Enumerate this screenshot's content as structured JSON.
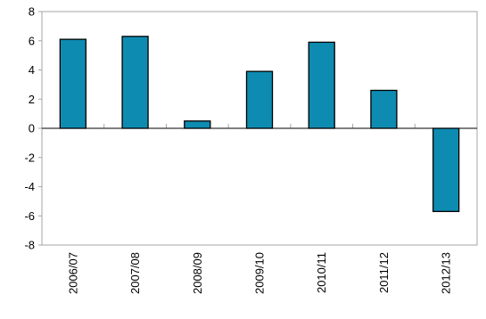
{
  "chart_data": {
    "type": "bar",
    "categories": [
      "2006/07",
      "2007/08",
      "2008/09",
      "2009/10",
      "2010/11",
      "2011/12",
      "2012/13"
    ],
    "values": [
      6.1,
      6.3,
      0.5,
      3.9,
      5.9,
      2.6,
      -5.7
    ],
    "ylim": [
      -8,
      8
    ],
    "yticks": [
      8,
      6,
      4,
      2,
      0,
      -2,
      -4,
      -6,
      -8
    ],
    "grid": false,
    "legend": "none",
    "colors": {
      "bar_fill": "#0e8bb1",
      "bar_stroke": "#000000",
      "axis": "#a6a6a6",
      "zero_line": "#000000"
    }
  }
}
